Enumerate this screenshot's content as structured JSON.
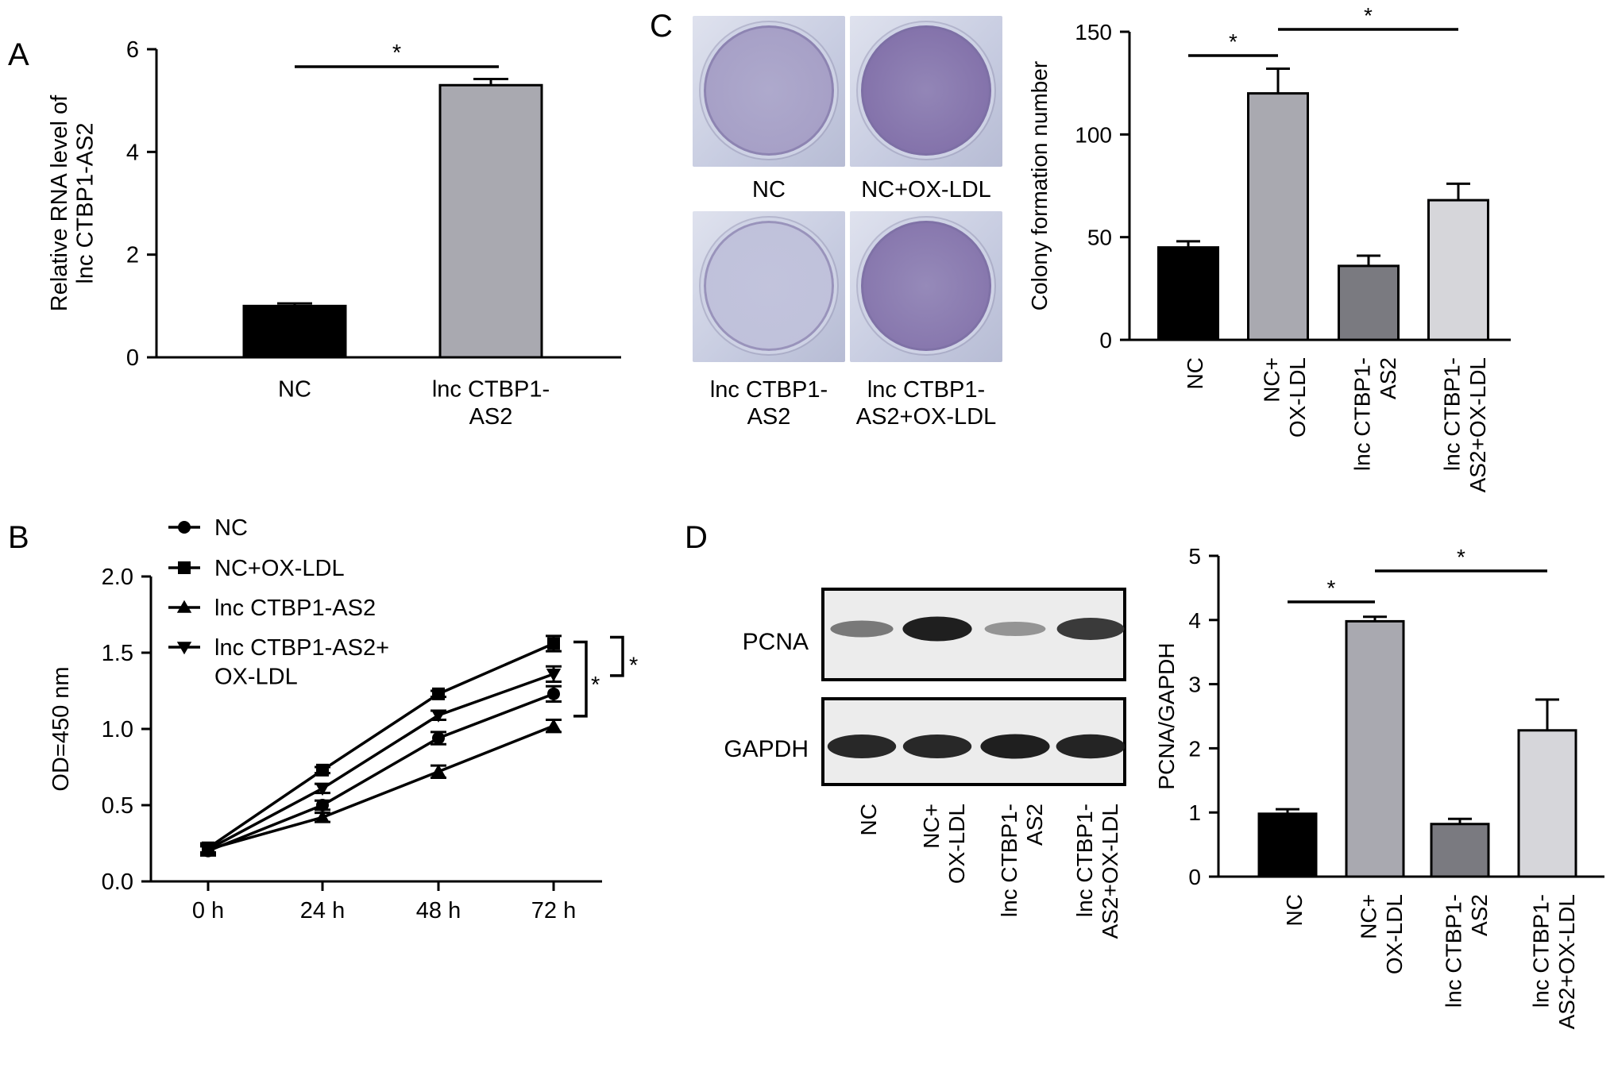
{
  "chart_data": [
    {
      "panel": "A",
      "type": "bar",
      "categories": [
        [
          "NC"
        ],
        [
          "lnc CTBP1-",
          "AS2"
        ]
      ],
      "values": [
        1.0,
        5.3
      ],
      "errors": [
        0.05,
        0.12
      ],
      "colors": [
        "#000000",
        "#a9a9b0"
      ],
      "ylabel": [
        "Relative RNA level of",
        "lnc CTBP1-AS2"
      ],
      "ylim": [
        0,
        6
      ],
      "yticks": [
        0,
        2,
        4,
        6
      ],
      "significance": [
        {
          "from": 0,
          "to": 1,
          "label": "*"
        }
      ]
    },
    {
      "panel": "B",
      "type": "line",
      "x": [
        "0 h",
        "24 h",
        "48 h",
        "72 h"
      ],
      "series": [
        {
          "name": "NC",
          "values": [
            0.2,
            0.5,
            0.94,
            1.23
          ],
          "errors": [
            0.03,
            0.03,
            0.04,
            0.05
          ],
          "marker": "circle"
        },
        {
          "name": "NC+OX-LDL",
          "values": [
            0.22,
            0.73,
            1.23,
            1.56
          ],
          "errors": [
            0.03,
            0.02,
            0.02,
            0.05
          ],
          "marker": "square"
        },
        {
          "name": "lnc CTBP1-AS2",
          "values": [
            0.21,
            0.42,
            0.72,
            1.02
          ],
          "errors": [
            0.03,
            0.03,
            0.04,
            0.04
          ],
          "marker": "triangle-up"
        },
        {
          "name": "lnc CTBP1-AS2+ OX-LDL",
          "values": [
            0.21,
            0.61,
            1.09,
            1.36
          ],
          "errors": [
            0.03,
            0.03,
            0.03,
            0.05
          ],
          "marker": "triangle-down"
        }
      ],
      "ylabel": "OD=450 nm",
      "ylim": [
        0,
        2.0
      ],
      "yticks": [
        "0.0",
        "0.5",
        "1.0",
        "1.5",
        "2.0"
      ],
      "legend_position": "top-left",
      "significance": [
        "*",
        "*"
      ]
    },
    {
      "panel": "C",
      "type": "bar",
      "categories": [
        [
          "NC"
        ],
        [
          "NC+",
          "OX-LDL"
        ],
        [
          "lnc CTBP1-",
          "AS2"
        ],
        [
          "lnc CTBP1-",
          "AS2+OX-LDL"
        ]
      ],
      "values": [
        45,
        120,
        36,
        68
      ],
      "errors": [
        3,
        12,
        5,
        8
      ],
      "colors": [
        "#000000",
        "#a9a9b0",
        "#7a7a80",
        "#d6d6da"
      ],
      "ylabel": "Colony formation number",
      "ylim": [
        0,
        150
      ],
      "yticks": [
        0,
        50,
        100,
        150
      ],
      "significance": [
        {
          "from": 0,
          "to": 1,
          "label": "*"
        },
        {
          "from": 1,
          "to": 3,
          "label": "*"
        }
      ],
      "image_labels": [
        [
          "NC"
        ],
        [
          "NC+OX-LDL"
        ],
        [
          "lnc CTBP1-",
          "AS2"
        ],
        [
          "lnc CTBP1-",
          "AS2+OX-LDL"
        ]
      ],
      "colony_density": [
        0.45,
        0.9,
        0.12,
        0.85
      ]
    },
    {
      "panel": "D",
      "type": "bar",
      "categories": [
        [
          "NC"
        ],
        [
          "NC+",
          "OX-LDL"
        ],
        [
          "lnc CTBP1-",
          "AS2"
        ],
        [
          "lnc CTBP1-",
          "AS2+OX-LDL"
        ]
      ],
      "values": [
        0.98,
        3.98,
        0.82,
        2.28
      ],
      "errors": [
        0.07,
        0.07,
        0.08,
        0.48
      ],
      "colors": [
        "#000000",
        "#a9a9b0",
        "#7a7a80",
        "#d6d6da"
      ],
      "ylabel": "PCNA/GAPDH",
      "ylim": [
        0,
        5
      ],
      "yticks": [
        0,
        1,
        2,
        3,
        4,
        5
      ],
      "significance": [
        {
          "from": 0,
          "to": 1,
          "label": "*"
        },
        {
          "from": 1,
          "to": 3,
          "label": "*"
        }
      ],
      "blot_rows": [
        "PCNA",
        "GAPDH"
      ],
      "band_intensity": {
        "PCNA": [
          0.45,
          0.95,
          0.3,
          0.8
        ],
        "GAPDH": [
          0.9,
          0.9,
          0.95,
          0.92
        ]
      }
    }
  ],
  "panel_letters": [
    "A",
    "B",
    "C",
    "D"
  ],
  "colors": {
    "bar_black": "#000000",
    "bar_mid": "#a9a9b0",
    "bar_dark": "#7a7a80",
    "bar_light": "#d6d6da",
    "stain": "#5b3d8a",
    "plate": "#c6cbe0"
  }
}
